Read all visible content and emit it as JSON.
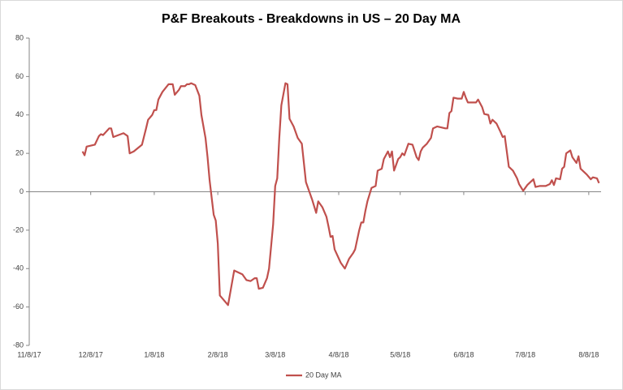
{
  "chart_data": {
    "type": "line",
    "title": "P&F Breakouts - Breakdowns in US – 20 Day MA",
    "x": [
      "12/4/17",
      "12/5/17",
      "12/6/17",
      "12/10/17",
      "12/12/17",
      "12/13/17",
      "12/14/17",
      "12/17/17",
      "12/18/17",
      "12/19/17",
      "12/24/17",
      "12/26/17",
      "12/27/17",
      "12/29/17",
      "1/2/18",
      "1/4/18",
      "1/5/18",
      "1/7/18",
      "1/8/18",
      "1/9/18",
      "1/10/18",
      "1/12/18",
      "1/15/18",
      "1/17/18",
      "1/18/18",
      "1/20/18",
      "1/21/18",
      "1/23/18",
      "1/24/18",
      "1/25/18",
      "1/26/18",
      "1/28/18",
      "1/30/18",
      "1/31/18",
      "2/2/18",
      "2/3/18",
      "2/4/18",
      "2/6/18",
      "2/7/18",
      "2/8/18",
      "2/9/18",
      "2/11/18",
      "2/13/18",
      "2/16/18",
      "2/20/18",
      "2/22/18",
      "2/24/18",
      "2/26/18",
      "2/27/18",
      "2/28/18",
      "3/2/18",
      "3/4/18",
      "3/5/18",
      "3/7/18",
      "3/8/18",
      "3/9/18",
      "3/10/18",
      "3/11/18",
      "3/13/18",
      "3/14/18",
      "3/15/18",
      "3/17/18",
      "3/19/18",
      "3/21/18",
      "3/23/18",
      "3/24/18",
      "3/26/18",
      "3/28/18",
      "3/29/18",
      "3/31/18",
      "4/2/18",
      "4/3/18",
      "4/4/18",
      "4/5/18",
      "4/6/18",
      "4/9/18",
      "4/11/18",
      "4/13/18",
      "4/15/18",
      "4/16/18",
      "4/18/18",
      "4/19/18",
      "4/20/18",
      "4/21/18",
      "4/22/18",
      "4/24/18",
      "4/26/18",
      "4/27/18",
      "4/29/18",
      "4/30/18",
      "5/2/18",
      "5/3/18",
      "5/4/18",
      "5/5/18",
      "5/6/18",
      "5/7/18",
      "5/8/18",
      "5/9/18",
      "5/10/18",
      "5/12/18",
      "5/14/18",
      "5/16/18",
      "5/17/18",
      "5/18/18",
      "5/19/18",
      "5/21/18",
      "5/23/18",
      "5/24/18",
      "5/26/18",
      "5/30/18",
      "5/31/18",
      "6/1/18",
      "6/2/18",
      "6/3/18",
      "6/5/18",
      "6/7/18",
      "6/8/18",
      "6/9/18",
      "6/10/18",
      "6/14/18",
      "6/15/18",
      "6/17/18",
      "6/18/18",
      "6/20/18",
      "6/21/18",
      "6/22/18",
      "6/24/18",
      "6/26/18",
      "6/27/18",
      "6/28/18",
      "6/30/18",
      "7/2/18",
      "7/4/18",
      "7/5/18",
      "7/7/18",
      "7/9/18",
      "7/11/18",
      "7/12/18",
      "7/13/18",
      "7/15/18",
      "7/17/18",
      "7/18/18",
      "7/20/18",
      "7/21/18",
      "7/22/18",
      "7/23/18",
      "7/25/18",
      "7/26/18",
      "7/27/18",
      "7/28/18",
      "7/30/18",
      "7/31/18",
      "8/2/18",
      "8/3/18",
      "8/4/18",
      "8/6/18",
      "8/7/18",
      "8/9/18",
      "8/10/18",
      "8/12/18",
      "8/13/18"
    ],
    "series": [
      {
        "name": "20 Day MA",
        "color": "#c0504d",
        "values": [
          21,
          19,
          23.5,
          24.5,
          29,
          30,
          29.5,
          33,
          33,
          28.5,
          30.5,
          29,
          20,
          21,
          24.5,
          33,
          37.5,
          40,
          42.5,
          42.5,
          48,
          52,
          56,
          56,
          50.5,
          53,
          55,
          55,
          56,
          56,
          56.5,
          55.5,
          50,
          40,
          28,
          18,
          6,
          -12,
          -15,
          -27,
          -54,
          -56.5,
          -59,
          -41,
          -43,
          -46,
          -46.5,
          -45,
          -45,
          -50.5,
          -50,
          -45,
          -40,
          -17,
          3,
          7,
          28,
          45,
          56.5,
          56,
          38,
          34,
          28,
          25,
          5,
          2,
          -4,
          -11,
          -5,
          -8,
          -13,
          -18,
          -23.5,
          -23,
          -30,
          -37,
          -40,
          -35,
          -32,
          -30,
          -20,
          -16,
          -16,
          -10,
          -5,
          2,
          3,
          11,
          12,
          17,
          21,
          18,
          21,
          11,
          14,
          17,
          18,
          20,
          19,
          25,
          24.5,
          18,
          16.5,
          21,
          23,
          25,
          28,
          33,
          34,
          33,
          33,
          41,
          42,
          49,
          48.5,
          48.5,
          52,
          49,
          46.5,
          46.5,
          48,
          44,
          40.5,
          40,
          35.5,
          37.5,
          35.5,
          31,
          28.5,
          29,
          13,
          11,
          7,
          4,
          0.5,
          3.5,
          5.5,
          6.5,
          2.5,
          3,
          3,
          3,
          4,
          6,
          3.5,
          7,
          6.5,
          12,
          13,
          20,
          21.5,
          18,
          15,
          18.5,
          12,
          10,
          9,
          6.5,
          7.5,
          7,
          4.5
        ]
      }
    ],
    "xlim": [
      "11/8/17",
      "8/14/18"
    ],
    "xticks": [
      "11/8/17",
      "12/8/17",
      "1/8/18",
      "2/8/18",
      "3/8/18",
      "4/8/18",
      "5/8/18",
      "6/8/18",
      "7/8/18",
      "8/8/18"
    ],
    "ylim": [
      -80,
      80
    ],
    "yticks": [
      -80,
      -60,
      -40,
      -20,
      0,
      20,
      40,
      60,
      80
    ],
    "legend": "bottom"
  }
}
